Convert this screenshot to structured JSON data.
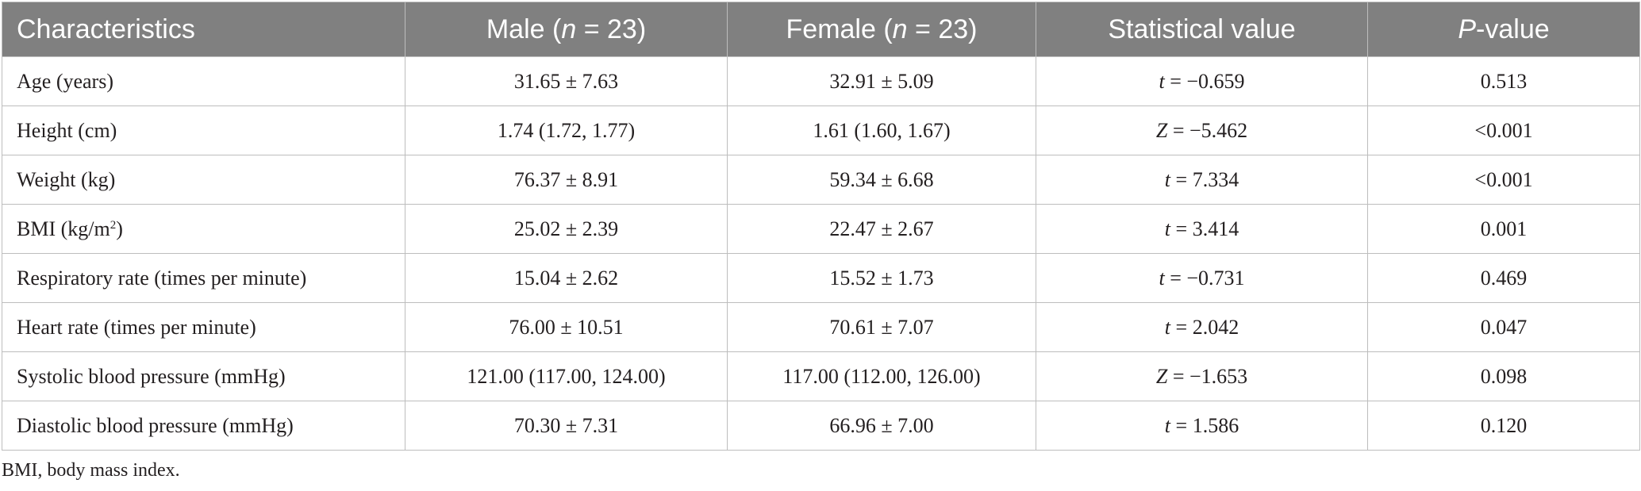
{
  "table": {
    "header": {
      "characteristics": "Characteristics",
      "male_prefix": "Male (",
      "male_n": "n",
      "male_suffix": " = 23)",
      "female_prefix": "Female (",
      "female_n": "n",
      "female_suffix": " = 23)",
      "statistical_value": "Statistical value",
      "p_italic": "P",
      "p_suffix": "-value"
    },
    "rows": [
      {
        "label": "Age (years)",
        "male": "31.65 ± 7.63",
        "female": "32.91 ± 5.09",
        "stat_symbol": "t",
        "stat_value": " = −0.659",
        "p": "0.513"
      },
      {
        "label": "Height (cm)",
        "male": "1.74 (1.72, 1.77)",
        "female": "1.61 (1.60, 1.67)",
        "stat_symbol": "Z",
        "stat_value": " = −5.462",
        "p": "<0.001"
      },
      {
        "label": "Weight (kg)",
        "male": "76.37 ± 8.91",
        "female": "59.34 ± 6.68",
        "stat_symbol": "t",
        "stat_value": " = 7.334",
        "p": "<0.001"
      },
      {
        "label": "BMI (kg/m",
        "label_sup": "2",
        "label_end": ")",
        "male": "25.02 ± 2.39",
        "female": "22.47 ± 2.67",
        "stat_symbol": "t",
        "stat_value": " = 3.414",
        "p": "0.001"
      },
      {
        "label": "Respiratory rate (times per minute)",
        "male": "15.04 ± 2.62",
        "female": "15.52 ± 1.73",
        "stat_symbol": "t",
        "stat_value": " = −0.731",
        "p": "0.469"
      },
      {
        "label": "Heart rate (times per minute)",
        "male": "76.00 ± 10.51",
        "female": "70.61 ± 7.07",
        "stat_symbol": "t",
        "stat_value": " = 2.042",
        "p": "0.047"
      },
      {
        "label": "Systolic blood pressure (mmHg)",
        "male": "121.00 (117.00, 124.00)",
        "female": "117.00 (112.00, 126.00)",
        "stat_symbol": "Z",
        "stat_value": " = −1.653",
        "p": "0.098"
      },
      {
        "label": "Diastolic blood pressure (mmHg)",
        "male": "70.30 ± 7.31",
        "female": "66.96 ± 7.00",
        "stat_symbol": "t",
        "stat_value": " = 1.586",
        "p": "0.120"
      }
    ]
  },
  "footnote": "BMI, body mass index."
}
